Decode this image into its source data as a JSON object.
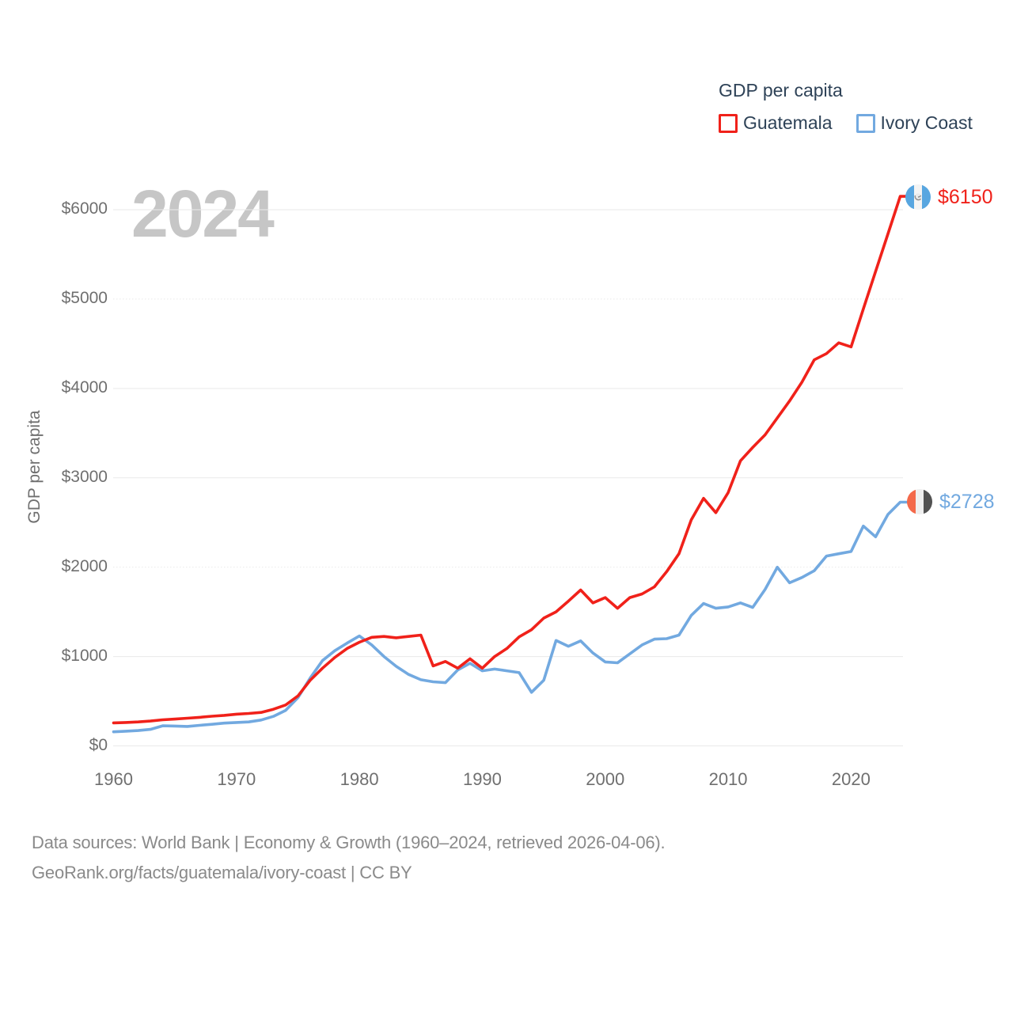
{
  "legend": {
    "title": "GDP per capita",
    "items": [
      {
        "label": "Guatemala",
        "color": "#f0211a"
      },
      {
        "label": "Ivory Coast",
        "color": "#72a9e0"
      }
    ]
  },
  "watermark": "2024",
  "end_labels": {
    "guatemala": {
      "text": "$6150"
    },
    "ivory_coast": {
      "text": "$2728"
    }
  },
  "footer": {
    "line1": "Data sources: World Bank | Economy & Growth (1960–2024, retrieved 2026-04-06).",
    "line2": "GeoRank.org/facts/guatemala/ivory-coast | CC BY"
  },
  "colors": {
    "guatemala_line": "#f0211a",
    "ivory_coast_line": "#72a9e0",
    "grid": "#e9e9e9",
    "axis_text": "#6f6f6f",
    "legend_text": "#2e4257",
    "watermark": "#c6c6c6",
    "footer_text": "#8a8a8a",
    "guatemala_flag_blue": "#58a6e0",
    "ivory_flag_orange": "#f4694a",
    "ivory_flag_dark": "#525252"
  },
  "chart_data": {
    "type": "line",
    "title": "GDP per capita",
    "xlabel": "",
    "ylabel": "GDP per capita",
    "xlim": [
      1960,
      2024
    ],
    "ylim": [
      0,
      6400
    ],
    "grid": "horizontal",
    "legend_position": "top-right",
    "x_ticks": [
      "1960",
      "1970",
      "1980",
      "1990",
      "2000",
      "2010",
      "2020"
    ],
    "x_tick_years": [
      1960,
      1970,
      1980,
      1990,
      2000,
      2010,
      2020
    ],
    "y_ticks": [
      "$0",
      "$1000",
      "$2000",
      "$3000",
      "$4000",
      "$5000",
      "$6000"
    ],
    "y_tick_values": [
      0,
      1000,
      2000,
      3000,
      4000,
      5000,
      6000
    ],
    "x_start": 1960,
    "x_step": 1,
    "series": [
      {
        "name": "Guatemala",
        "color": "#f0211a",
        "end_label": "$6150",
        "end_value": 6150,
        "values": [
          258,
          262,
          268,
          278,
          292,
          300,
          310,
          320,
          332,
          342,
          355,
          363,
          375,
          410,
          458,
          560,
          735,
          870,
          990,
          1090,
          1160,
          1215,
          1225,
          1210,
          1225,
          1240,
          895,
          945,
          870,
          975,
          870,
          1000,
          1090,
          1220,
          1300,
          1430,
          1500,
          1620,
          1745,
          1600,
          1660,
          1540,
          1660,
          1700,
          1780,
          1950,
          2150,
          2530,
          2770,
          2610,
          2835,
          3190,
          3340,
          3480,
          3670,
          3860,
          4070,
          4320,
          4390,
          4510,
          4465,
          4890,
          5310,
          5730,
          6150
        ]
      },
      {
        "name": "Ivory Coast",
        "color": "#72a9e0",
        "end_label": "$2728",
        "end_value": 2728,
        "values": [
          158,
          165,
          172,
          185,
          225,
          222,
          218,
          230,
          242,
          255,
          262,
          268,
          290,
          330,
          398,
          540,
          760,
          955,
          1065,
          1150,
          1230,
          1130,
          1000,
          890,
          800,
          740,
          717,
          708,
          850,
          925,
          840,
          860,
          840,
          820,
          600,
          735,
          1180,
          1115,
          1175,
          1040,
          940,
          930,
          1030,
          1130,
          1195,
          1200,
          1240,
          1460,
          1593,
          1540,
          1555,
          1600,
          1550,
          1750,
          2000,
          1825,
          1885,
          1960,
          2125,
          2150,
          2175,
          2460,
          2340,
          2590,
          2728
        ]
      }
    ]
  }
}
